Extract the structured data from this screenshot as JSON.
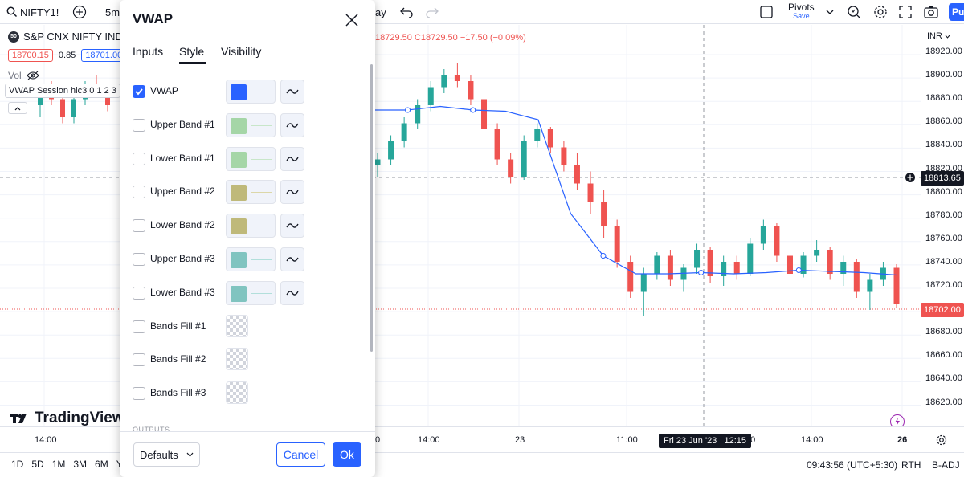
{
  "toolbar": {
    "symbol": "NIFTY1!",
    "interval": "5m",
    "range_partial": "ay",
    "pivots_title": "Pivots",
    "pivots_sub": "Save",
    "publish_partial": "Pu"
  },
  "legend": {
    "symbol_badge": "50",
    "symbol_name": "S&P CNX NIFTY INDE",
    "ohlc_text": "18729.50 C18729.50 −17.50 (−0.09%)",
    "bid": "18700.15",
    "spread": "0.85",
    "ask": "18701.00",
    "vol_label": "Vol",
    "vwap_label": "VWAP Session hlc3 0 1 2 3"
  },
  "yaxis": {
    "currency": "INR",
    "ticks": [
      "18920.00",
      "18900.00",
      "18880.00",
      "18860.00",
      "18840.00",
      "18820.00",
      "18800.00",
      "18780.00",
      "18760.00",
      "18740.00",
      "18720.00",
      "18700.00",
      "18680.00",
      "18660.00",
      "18640.00",
      "18620.00"
    ],
    "crosshair_price": "18813.65",
    "last_price": "18702.00"
  },
  "xaxis": {
    "ticks": [
      "14:00",
      "14:00",
      "23",
      "11:00",
      "14:00",
      "26"
    ],
    "tick_left_partial": "0",
    "crosshair_label": "Fri 23 Jun '23   12:15",
    "crosshair_suffix": ":00"
  },
  "bottombar": {
    "ranges": [
      "1D",
      "5D",
      "1M",
      "3M",
      "6M",
      "YT"
    ],
    "clock": "09:43:56 (UTC+5:30)",
    "session": "RTH",
    "adj": "B-ADJ"
  },
  "brand": {
    "name": "TradingView"
  },
  "dialog": {
    "title": "VWAP",
    "tabs": [
      "Inputs",
      "Style",
      "Visibility"
    ],
    "active_tab": "Style",
    "rows": [
      {
        "label": "VWAP",
        "checked": true,
        "color": "#2962ff",
        "line": "#2962ff",
        "type": "line"
      },
      {
        "label": "Upper Band #1",
        "checked": false,
        "color": "#a5d6a7",
        "line": "#c8e6c9",
        "type": "line"
      },
      {
        "label": "Lower Band #1",
        "checked": false,
        "color": "#a5d6a7",
        "line": "#c8e6c9",
        "type": "line"
      },
      {
        "label": "Upper Band #2",
        "checked": false,
        "color": "#bfb97a",
        "line": "#dcd7a8",
        "type": "line"
      },
      {
        "label": "Lower Band #2",
        "checked": false,
        "color": "#bfb97a",
        "line": "#dcd7a8",
        "type": "line"
      },
      {
        "label": "Upper Band #3",
        "checked": false,
        "color": "#80c4c0",
        "line": "#b2dfdb",
        "type": "line"
      },
      {
        "label": "Lower Band #3",
        "checked": false,
        "color": "#80c4c0",
        "line": "#b2dfdb",
        "type": "line"
      },
      {
        "label": "Bands Fill #1",
        "checked": false,
        "type": "fill"
      },
      {
        "label": "Bands Fill #2",
        "checked": false,
        "type": "fill"
      },
      {
        "label": "Bands Fill #3",
        "checked": false,
        "type": "fill"
      }
    ],
    "outputs_label": "OUTPUTS",
    "defaults_label": "Defaults",
    "cancel_label": "Cancel",
    "ok_label": "Ok"
  },
  "colors": {
    "up": "#26a69a",
    "down": "#ef5350",
    "vwap": "#2962ff",
    "accent": "#2962ff"
  },
  "chart_data": {
    "type": "candlestick",
    "ylim": [
      18610,
      18930
    ],
    "vwap": [
      18866,
      18866,
      18869,
      18866,
      18865,
      18858,
      18780,
      18745,
      18730,
      18730,
      18731,
      18730,
      18731,
      18733,
      18732,
      18731,
      18729
    ],
    "candles": [
      [
        18820,
        18830,
        18810,
        18825
      ],
      [
        18825,
        18845,
        18820,
        18840
      ],
      [
        18840,
        18860,
        18835,
        18855
      ],
      [
        18855,
        18875,
        18850,
        18870
      ],
      [
        18870,
        18890,
        18865,
        18885
      ],
      [
        18885,
        18900,
        18880,
        18895
      ],
      [
        18895,
        18905,
        18885,
        18890
      ],
      [
        18890,
        18895,
        18870,
        18875
      ],
      [
        18875,
        18880,
        18845,
        18850
      ],
      [
        18850,
        18855,
        18820,
        18825
      ],
      [
        18825,
        18830,
        18805,
        18810
      ],
      [
        18810,
        18845,
        18808,
        18840
      ],
      [
        18840,
        18855,
        18835,
        18850
      ],
      [
        18850,
        18852,
        18830,
        18835
      ],
      [
        18835,
        18840,
        18815,
        18820
      ],
      [
        18820,
        18830,
        18800,
        18805
      ],
      [
        18805,
        18815,
        18780,
        18790
      ],
      [
        18790,
        18800,
        18760,
        18770
      ],
      [
        18770,
        18775,
        18735,
        18740
      ],
      [
        18740,
        18745,
        18710,
        18715
      ],
      [
        18715,
        18735,
        18695,
        18730
      ],
      [
        18730,
        18748,
        18725,
        18745
      ],
      [
        18745,
        18750,
        18720,
        18725
      ],
      [
        18725,
        18738,
        18715,
        18735
      ],
      [
        18735,
        18755,
        18730,
        18750
      ],
      [
        18750,
        18752,
        18722,
        18728
      ],
      [
        18728,
        18745,
        18720,
        18740
      ],
      [
        18740,
        18745,
        18725,
        18730
      ],
      [
        18730,
        18760,
        18728,
        18755
      ],
      [
        18755,
        18775,
        18750,
        18770
      ],
      [
        18770,
        18772,
        18740,
        18745
      ],
      [
        18745,
        18750,
        18725,
        18730
      ],
      [
        18730,
        18748,
        18727,
        18745
      ],
      [
        18745,
        18758,
        18740,
        18750
      ],
      [
        18750,
        18752,
        18725,
        18730
      ],
      [
        18730,
        18745,
        18720,
        18740
      ],
      [
        18740,
        18742,
        18710,
        18715
      ],
      [
        18715,
        18730,
        18700,
        18725
      ],
      [
        18725,
        18740,
        18720,
        18735
      ],
      [
        18735,
        18738,
        18702,
        18705
      ]
    ]
  }
}
